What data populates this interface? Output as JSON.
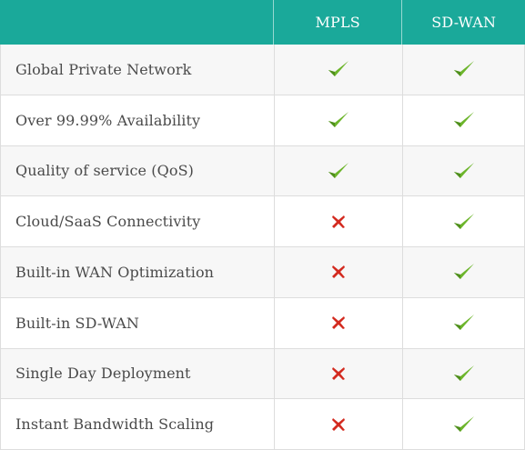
{
  "header": {
    "columns": [
      "MPLS",
      "SD-WAN"
    ]
  },
  "rows": [
    {
      "feature": "Global Private Network",
      "mpls": "check",
      "sdwan": "check"
    },
    {
      "feature": "Over 99.99% Availability",
      "mpls": "check",
      "sdwan": "check"
    },
    {
      "feature": "Quality of service (QoS)",
      "mpls": "check",
      "sdwan": "check"
    },
    {
      "feature": "Cloud/SaaS Connectivity",
      "mpls": "cross",
      "sdwan": "check"
    },
    {
      "feature": "Built-in WAN Optimization",
      "mpls": "cross",
      "sdwan": "check"
    },
    {
      "feature": "Built-in SD-WAN",
      "mpls": "cross",
      "sdwan": "check"
    },
    {
      "feature": "Single Day Deployment",
      "mpls": "cross",
      "sdwan": "check"
    },
    {
      "feature": "Instant Bandwidth Scaling",
      "mpls": "cross",
      "sdwan": "check"
    }
  ],
  "colors": {
    "header_bg": "#1aa99a",
    "check": "#6cb52b",
    "cross": "#d32a1f"
  }
}
